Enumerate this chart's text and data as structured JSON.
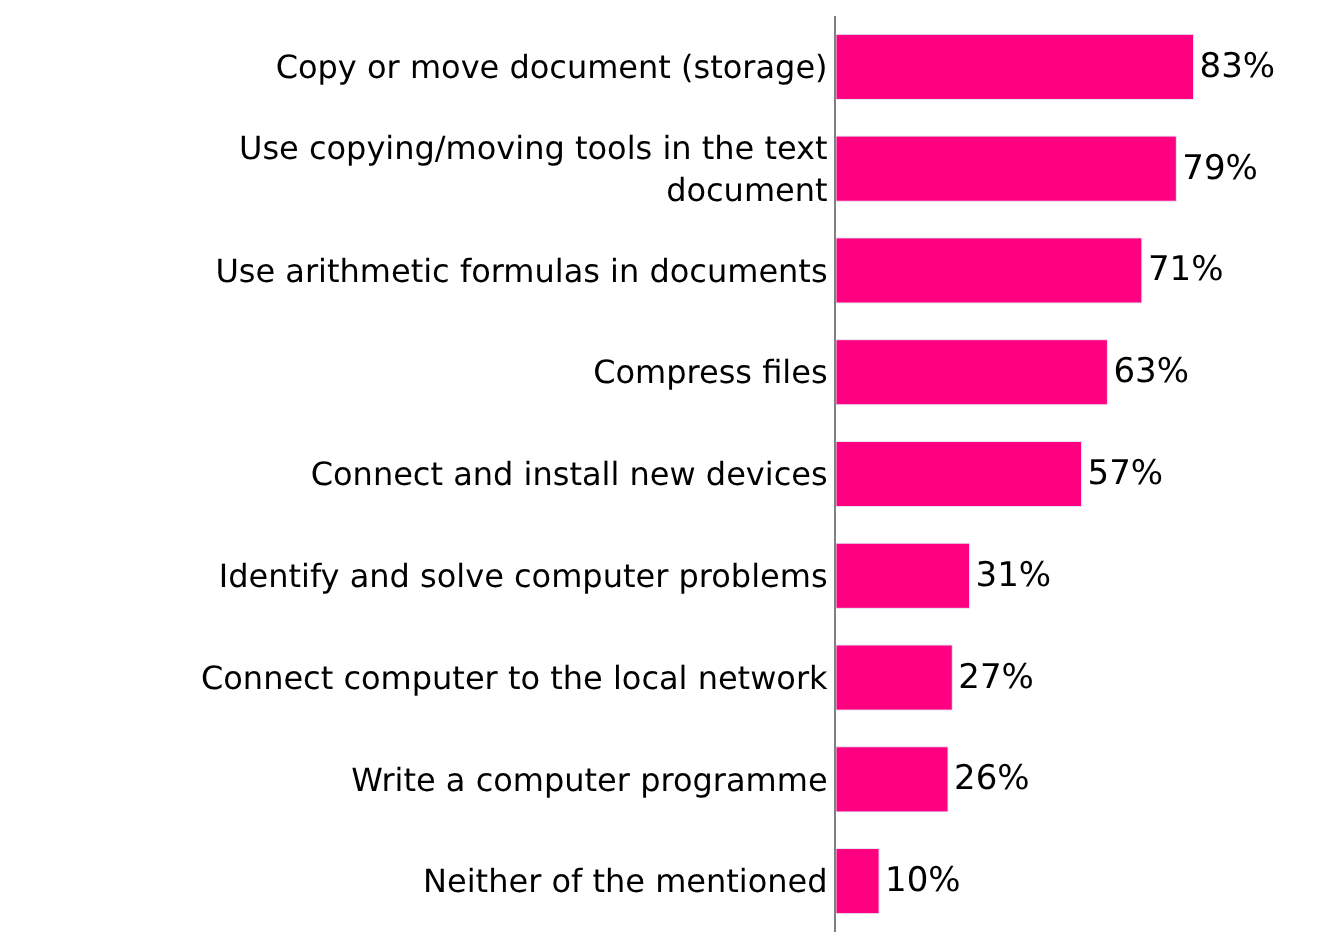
{
  "chart_data": {
    "type": "bar",
    "orientation": "horizontal",
    "categories": [
      "Copy or move document (storage)",
      "Use copying/moving tools in the text document",
      "Use arithmetic formulas in documents",
      "Compress files",
      "Connect and install new devices",
      "Identify and solve computer problems",
      "Connect computer to the local network",
      "Write a computer programme",
      "Neither of the mentioned"
    ],
    "values": [
      83,
      79,
      71,
      63,
      57,
      31,
      27,
      26,
      10
    ],
    "value_labels": [
      "83%",
      "79%",
      "71%",
      "63%",
      "57%",
      "31%",
      "27%",
      "26%",
      "10%"
    ],
    "color": "#ff0080"
  }
}
